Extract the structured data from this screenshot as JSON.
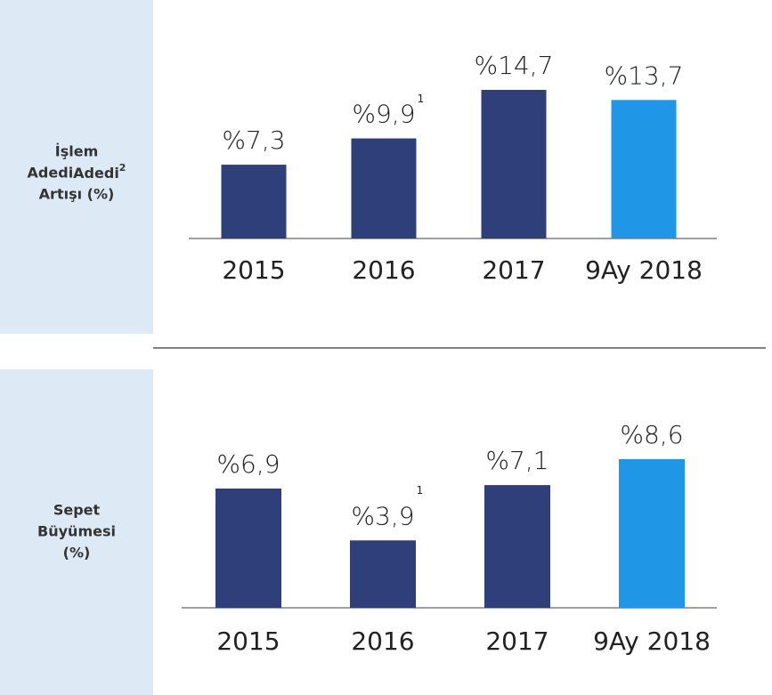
{
  "chart_data": [
    {
      "type": "bar",
      "label_lines": [
        "İşlem",
        "Adedi",
        "Artışı (%)"
      ],
      "label_note": "2",
      "categories": [
        "2015",
        "2016",
        "2017",
        "9Ay 2018"
      ],
      "values": [
        7.3,
        9.9,
        14.7,
        13.7
      ],
      "value_labels": [
        "%7,3",
        "%9,9",
        "%14,7",
        "%13,7"
      ],
      "colors": [
        "#2e3f7a",
        "#2e3f7a",
        "#2e3f7a",
        "#1f96e6"
      ],
      "annotations": [
        {
          "index": 1,
          "text": "1"
        }
      ]
    },
    {
      "type": "bar",
      "label_lines": [
        "Sepet",
        "Büyümesi",
        "(%)"
      ],
      "categories": [
        "2015",
        "2016",
        "2017",
        "9Ay 2018"
      ],
      "values": [
        6.9,
        3.9,
        7.1,
        8.6
      ],
      "value_labels": [
        "%6,9",
        "%3,9",
        "%7,1",
        "%8,6"
      ],
      "colors": [
        "#2e3f7a",
        "#2e3f7a",
        "#2e3f7a",
        "#1f96e6"
      ],
      "annotations": [
        {
          "index": 1,
          "text": "1"
        }
      ]
    }
  ]
}
